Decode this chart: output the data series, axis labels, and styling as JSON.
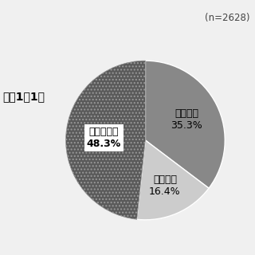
{
  "slices": [
    {
      "label": "増加した\n35.3%",
      "value": 35.3,
      "color": "#888888",
      "hatch": null,
      "text_color": "black"
    },
    {
      "label": "減少した\n16.4%",
      "value": 16.4,
      "color": "#cccccc",
      "hatch": null,
      "text_color": "black"
    },
    {
      "label": "変わらない\n48.3%",
      "value": 48.3,
      "color": "#5a5a5a",
      "hatch": "....",
      "text_color": "black"
    }
  ],
  "n_label": "(n=2628)",
  "fig_label": "『図1－1』",
  "background_color": "#f0f0f0",
  "startangle": 90,
  "label_fontsize": 9,
  "n_fontsize": 8.5,
  "fig_label_fontsize": 10,
  "label_radii": [
    0.58,
    0.62,
    0.52
  ]
}
